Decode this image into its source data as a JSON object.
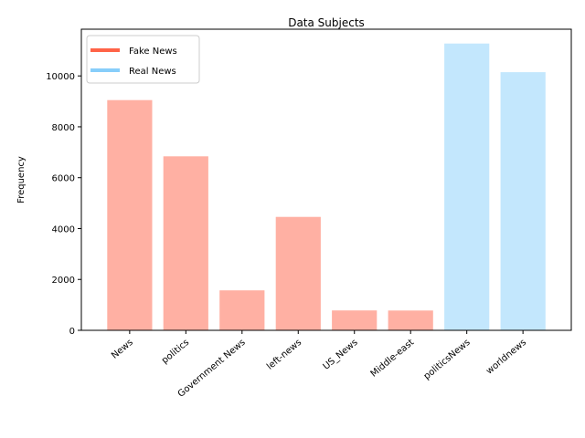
{
  "chart_data": {
    "type": "bar",
    "title": "Data Subjects",
    "xlabel": "",
    "ylabel": "Frequency",
    "categories": [
      "News",
      "politics",
      "Government News",
      "left-news",
      "US_News",
      "Middle-east",
      "politicsNews",
      "worldnews"
    ],
    "values": [
      9050,
      6841,
      1570,
      4459,
      783,
      778,
      11272,
      10145
    ],
    "bar_groups": [
      "Fake News",
      "Fake News",
      "Fake News",
      "Fake News",
      "Fake News",
      "Fake News",
      "Real News",
      "Real News"
    ],
    "ylim": [
      0,
      11836
    ],
    "yticks": [
      0,
      2000,
      4000,
      6000,
      8000,
      10000
    ],
    "grid": false,
    "legend": {
      "placement": "top-left",
      "entries": [
        {
          "name": "Fake News",
          "color": "#ff6347"
        },
        {
          "name": "Real News",
          "color": "#87cefa"
        }
      ]
    },
    "bar_colors": {
      "Fake News": "#ffb0a3",
      "Real News": "#c3e7fd"
    }
  }
}
